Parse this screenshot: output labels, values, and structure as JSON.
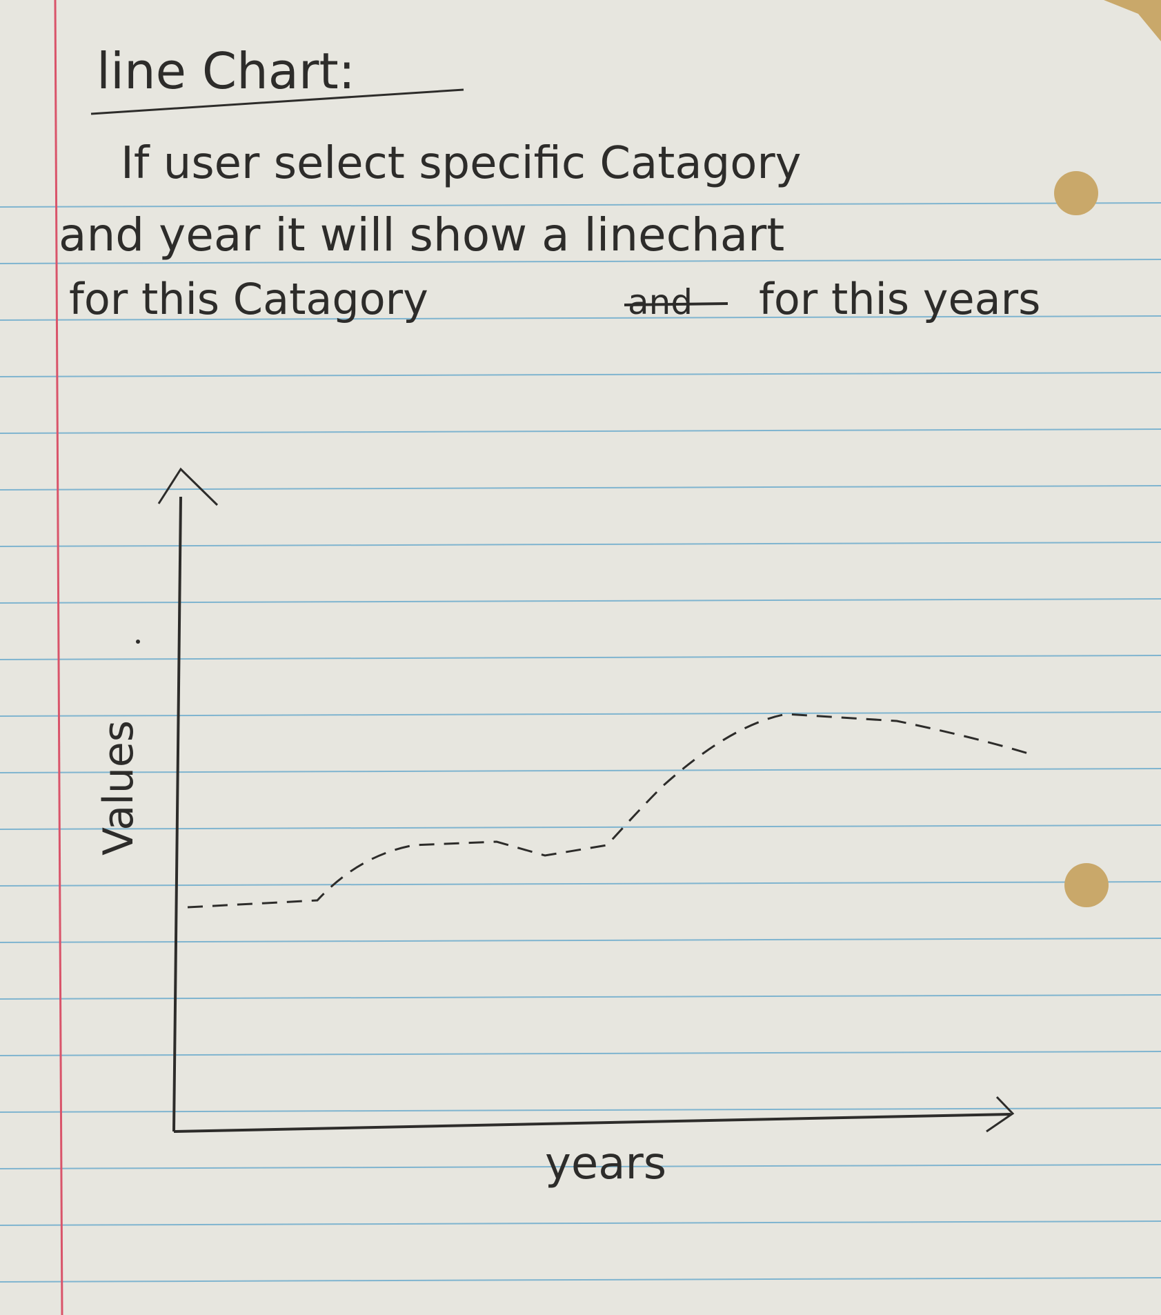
{
  "note": {
    "heading": "line Chart:",
    "body_lines": [
      "If user select specific Catagory",
      "and year it will show a linechart",
      "for this Catagory"
    ],
    "struck_word": "and",
    "body_line3_tail": "for this years"
  },
  "sketch": {
    "y_axis_label": "Values",
    "x_axis_label": "years",
    "line_style": "dashed"
  },
  "colors": {
    "paper": "#e7e6df",
    "rule_lines": "#7fb4cf",
    "margin_line": "#d9546a",
    "ink": "#2d2c2a",
    "background": "#c9a86a"
  }
}
